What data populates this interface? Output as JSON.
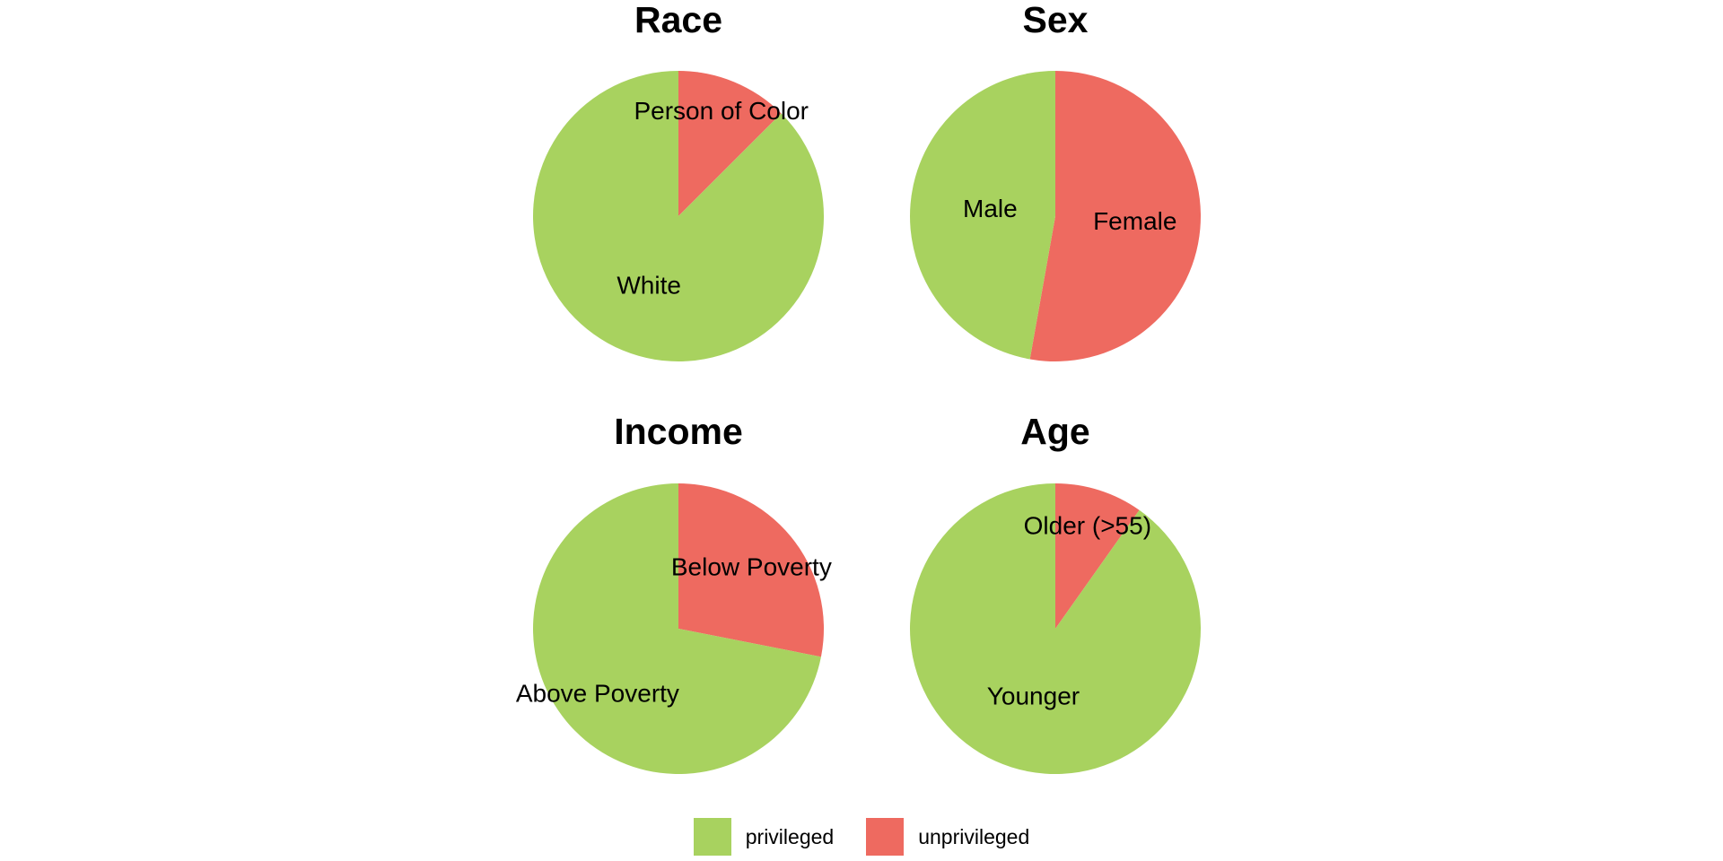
{
  "colors": {
    "privileged": "#A8D25F",
    "unprivileged": "#EE6A60"
  },
  "legend": {
    "items": [
      {
        "key": "privileged",
        "label": "privileged"
      },
      {
        "key": "unprivileged",
        "label": "unprivileged"
      }
    ]
  },
  "chart_data": [
    {
      "type": "pie",
      "title": "Race",
      "slices": [
        {
          "label": "Person of Color",
          "value": 0.125,
          "group": "unprivileged"
        },
        {
          "label": "White",
          "value": 0.875,
          "group": "privileged"
        }
      ]
    },
    {
      "type": "pie",
      "title": "Sex",
      "slices": [
        {
          "label": "Female",
          "value": 0.528,
          "group": "unprivileged"
        },
        {
          "label": "Male",
          "value": 0.472,
          "group": "privileged"
        }
      ]
    },
    {
      "type": "pie",
      "title": "Income",
      "slices": [
        {
          "label": "Below Poverty",
          "value": 0.281,
          "group": "unprivileged"
        },
        {
          "label": "Above Poverty",
          "value": 0.719,
          "group": "privileged"
        }
      ]
    },
    {
      "type": "pie",
      "title": "Age",
      "slices": [
        {
          "label": "Older (>55)",
          "value": 0.098,
          "group": "unprivileged"
        },
        {
          "label": "Younger",
          "value": 0.902,
          "group": "privileged"
        }
      ]
    }
  ]
}
